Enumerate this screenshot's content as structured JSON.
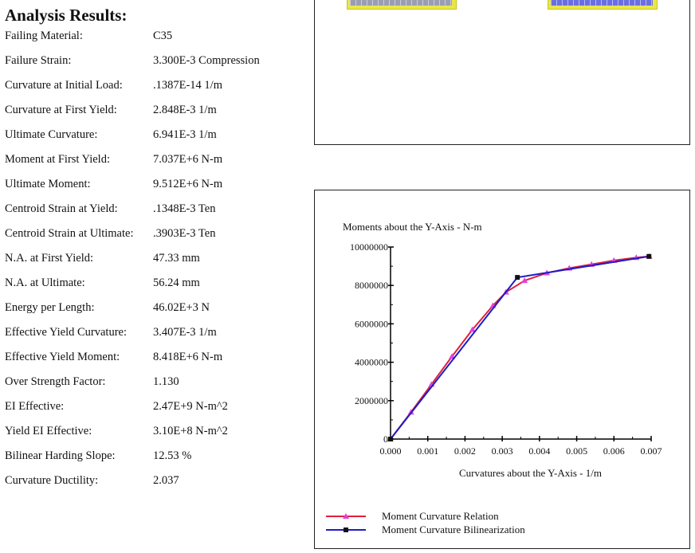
{
  "results": {
    "title": "Analysis Results:",
    "rows": [
      {
        "label": "Failing Material:",
        "value": "C35"
      },
      {
        "label": "Failure Strain:",
        "value": "3.300E-3  Compression"
      },
      {
        "label": "Curvature at Initial Load:",
        "value": ".1387E-14  1/m"
      },
      {
        "label": "Curvature at First Yield:",
        "value": "2.848E-3  1/m"
      },
      {
        "label": "Ultimate Curvature:",
        "value": "6.941E-3  1/m"
      },
      {
        "label": "Moment at First Yield:",
        "value": "7.037E+6  N-m"
      },
      {
        "label": "Ultimate Moment:",
        "value": "9.512E+6  N-m"
      },
      {
        "label": "Centroid Strain at Yield:",
        "value": ".1348E-3  Ten"
      },
      {
        "label": "Centroid Strain at Ultimate:",
        "value": ".3903E-3  Ten"
      },
      {
        "label": "N.A. at First Yield:",
        "value": "47.33  mm"
      },
      {
        "label": "N.A. at Ultimate:",
        "value": "56.24  mm"
      },
      {
        "label": "Energy per Length:",
        "value": "46.02E+3  N"
      },
      {
        "label": "Effective Yield Curvature:",
        "value": "3.407E-3  1/m"
      },
      {
        "label": "Effective Yield Moment:",
        "value": "8.418E+6  N-m"
      },
      {
        "label": "Over Strength Factor:",
        "value": "1.130"
      },
      {
        "label": "EI Effective:",
        "value": "2.47E+9  N-m^2"
      },
      {
        "label": "Yield EI Effective:",
        "value": "3.10E+8  N-m^2"
      },
      {
        "label": "Bilinear Harding Slope:",
        "value": "12.53  %"
      },
      {
        "label": "Curvature Ductility:",
        "value": "2.037"
      }
    ]
  },
  "chart_data": {
    "type": "line",
    "title": "Moments about the Y-Axis - N-m",
    "xlabel": "Curvatures about the Y-Axis - 1/m",
    "ylabel": "",
    "xlim": [
      0,
      0.007
    ],
    "ylim": [
      0,
      10000000
    ],
    "x_ticks": [
      "0.000",
      "0.001",
      "0.002",
      "0.003",
      "0.004",
      "0.005",
      "0.006",
      "0.007"
    ],
    "y_ticks": [
      "0",
      "2000000",
      "4000000",
      "6000000",
      "8000000",
      "10000000"
    ],
    "grid": false,
    "legend_position": "bottom",
    "series": [
      {
        "name": "Moment Curvature Relation",
        "color": "#e0203c",
        "marker": "triangle",
        "marker_color": "#e040e0",
        "x": [
          0,
          0.00055,
          0.0011,
          0.00165,
          0.0022,
          0.00275,
          0.0031,
          0.0036,
          0.0042,
          0.0048,
          0.0054,
          0.006,
          0.0066,
          0.00695
        ],
        "y": [
          0,
          1400000,
          2850000,
          4300000,
          5700000,
          6950000,
          7650000,
          8250000,
          8650000,
          8900000,
          9100000,
          9300000,
          9450000,
          9512000
        ]
      },
      {
        "name": "Moment Curvature Bilinearization",
        "color": "#1c1cc8",
        "marker": "square",
        "marker_color": "#111111",
        "x": [
          0,
          0.003407,
          0.006941
        ],
        "y": [
          0,
          8418000,
          9512000
        ]
      }
    ]
  }
}
